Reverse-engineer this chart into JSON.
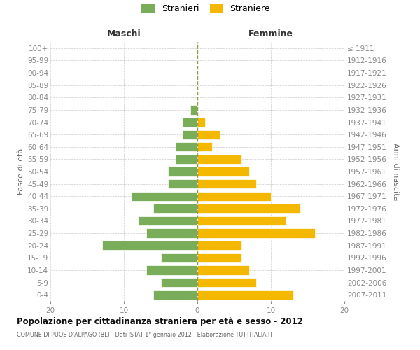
{
  "age_groups": [
    "0-4",
    "5-9",
    "10-14",
    "15-19",
    "20-24",
    "25-29",
    "30-34",
    "35-39",
    "40-44",
    "45-49",
    "50-54",
    "55-59",
    "60-64",
    "65-69",
    "70-74",
    "75-79",
    "80-84",
    "85-89",
    "90-94",
    "95-99",
    "100+"
  ],
  "birth_years": [
    "2007-2011",
    "2002-2006",
    "1997-2001",
    "1992-1996",
    "1987-1991",
    "1982-1986",
    "1977-1981",
    "1972-1976",
    "1967-1971",
    "1962-1966",
    "1957-1961",
    "1952-1956",
    "1947-1951",
    "1942-1946",
    "1937-1941",
    "1932-1936",
    "1927-1931",
    "1922-1926",
    "1917-1921",
    "1912-1916",
    "≤ 1911"
  ],
  "males": [
    6,
    5,
    7,
    5,
    13,
    7,
    8,
    6,
    9,
    4,
    4,
    3,
    3,
    2,
    2,
    1,
    0,
    0,
    0,
    0,
    0
  ],
  "females": [
    13,
    8,
    7,
    6,
    6,
    16,
    12,
    14,
    10,
    8,
    7,
    6,
    2,
    3,
    1,
    0,
    0,
    0,
    0,
    0,
    0
  ],
  "male_color": "#7aad5a",
  "female_color": "#f5b800",
  "bar_edge_color": "#ffffff",
  "grid_color": "#cccccc",
  "center_line_color": "#999944",
  "bg_color": "#ffffff",
  "title": "Popolazione per cittadinanza straniera per età e sesso - 2012",
  "subtitle": "COMUNE DI PUOS D'ALPAGO (BL) - Dati ISTAT 1° gennaio 2012 - Elaborazione TUTTITALIA.IT",
  "ylabel_left": "Fasce di età",
  "ylabel_right": "Anni di nascita",
  "xlabel_male": "Maschi",
  "xlabel_female": "Femmine",
  "legend_male": "Stranieri",
  "legend_female": "Straniere",
  "xlim": [
    -20,
    20
  ],
  "xticks": [
    -20,
    -10,
    0,
    10,
    20
  ],
  "xticklabels": [
    "20",
    "10",
    "0",
    "10",
    "20"
  ],
  "tick_color": "#888888",
  "label_color": "#666666",
  "title_color": "#111111"
}
